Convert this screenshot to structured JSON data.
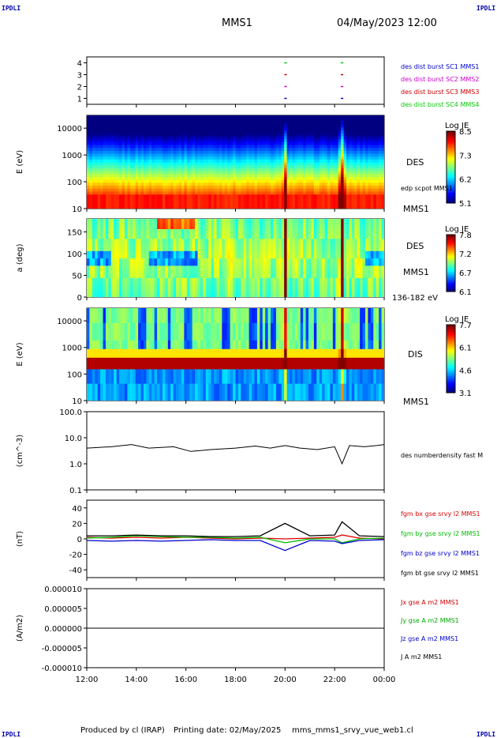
{
  "corner": {
    "tl": "IPDLI",
    "tr": "IPDLI",
    "bl": "IPDLI",
    "br": "IPDLI"
  },
  "header": {
    "spacecraft": "MMS1",
    "datetime": "04/May/2023 12:00"
  },
  "footer": {
    "produced": "Produced by cl (IRAP)",
    "printing": "Printing date: 02/May/2025",
    "file": "mms_mms1_srvy_vue_web1.cl"
  },
  "colors": {
    "mms1": "#0000cc",
    "mms2": "#cc00cc",
    "mms3": "#cc0000",
    "mms4": "#00cc00",
    "bx": "#dd0000",
    "by": "#00bb00",
    "bz": "#0000cc",
    "bt": "#000000"
  },
  "chart_data": [
    {
      "type": "scatter",
      "name": "burst availability",
      "yticks": [
        "1",
        "2",
        "3",
        "4"
      ],
      "ylim": [
        0.5,
        4.5
      ],
      "legend": [
        "des dist burst SC1 MMS1",
        "des dist burst SC2 MMS2",
        "des dist burst SC3 MMS3",
        "des dist burst SC4 MMS4"
      ],
      "segments": [
        {
          "sc": 1,
          "x": [
            19.97,
            20.07
          ]
        },
        {
          "sc": 2,
          "x": [
            19.97,
            20.07
          ]
        },
        {
          "sc": 3,
          "x": [
            19.97,
            20.07
          ]
        },
        {
          "sc": 4,
          "x": [
            19.97,
            20.07
          ]
        },
        {
          "sc": 1,
          "x": [
            22.25,
            22.35
          ]
        },
        {
          "sc": 2,
          "x": [
            22.25,
            22.35
          ]
        },
        {
          "sc": 3,
          "x": [
            22.25,
            22.35
          ]
        },
        {
          "sc": 4,
          "x": [
            22.25,
            22.35
          ]
        }
      ]
    },
    {
      "type": "heatmap",
      "name": "DES energy spectrogram",
      "ylabel": "E (eV)",
      "yscale": "log",
      "ylim": [
        10,
        30000
      ],
      "yticks": [
        "10",
        "100",
        "1000",
        "10000"
      ],
      "right_labels": [
        "DES",
        "edp scpot MMS1",
        "MMS1"
      ],
      "colorbar": {
        "title": "Log JE",
        "ticks": [
          "8.5",
          "7.3",
          "6.2",
          "5.1"
        ],
        "range": [
          5.1,
          8.5
        ]
      }
    },
    {
      "type": "heatmap",
      "name": "DES pitch angle",
      "ylabel": "a (deg)",
      "ylim": [
        0,
        180
      ],
      "yticks": [
        "0",
        "50",
        "100",
        "150"
      ],
      "right_labels": [
        "DES",
        "MMS1",
        "136-182 eV"
      ],
      "colorbar": {
        "title": "Log JE",
        "ticks": [
          "7.8",
          "7.2",
          "6.7",
          "6.1"
        ],
        "range": [
          6.1,
          7.8
        ]
      }
    },
    {
      "type": "heatmap",
      "name": "DIS energy spectrogram",
      "ylabel": "E (eV)",
      "yscale": "log",
      "ylim": [
        10,
        30000
      ],
      "yticks": [
        "10",
        "100",
        "1000",
        "10000"
      ],
      "right_labels": [
        "DIS",
        "MMS1"
      ],
      "colorbar": {
        "title": "Log JE",
        "ticks": [
          "7.7",
          "6.1",
          "4.6",
          "3.1"
        ],
        "range": [
          3.1,
          7.7
        ]
      }
    },
    {
      "type": "line",
      "name": "density",
      "ylabel": "(cm^-3)",
      "yscale": "log",
      "ylim": [
        0.1,
        100
      ],
      "yticks": [
        "0.1",
        "1.0",
        "10.0",
        "100.0"
      ],
      "legend": [
        "des numberdensity fast M"
      ],
      "x": [
        12.0,
        13.0,
        13.8,
        14.5,
        15.5,
        16.2,
        17.0,
        18.0,
        18.8,
        19.4,
        20.0,
        20.6,
        21.3,
        22.0,
        22.3,
        22.6,
        23.2,
        23.7,
        24.0
      ],
      "y": [
        4.0,
        4.5,
        5.5,
        4.0,
        4.5,
        3.0,
        3.5,
        4.0,
        4.8,
        4.0,
        5.0,
        4.0,
        3.5,
        4.5,
        1.0,
        5.0,
        4.5,
        5.0,
        5.5
      ]
    },
    {
      "type": "line",
      "name": "magnetic field",
      "ylabel": "(nT)",
      "ylim": [
        -50,
        50
      ],
      "yticks": [
        "-40",
        "-20",
        "0",
        "20",
        "40"
      ],
      "legend": [
        "fgm bx gse srvy l2 MMS1",
        "fgm by gse srvy l2 MMS1",
        "fgm bz gse srvy l2 MMS1",
        "fgm bt gse srvy l2 MMS1"
      ],
      "x": [
        12.0,
        13.0,
        14.0,
        15.0,
        16.0,
        17.0,
        18.0,
        19.0,
        20.0,
        21.0,
        22.0,
        22.3,
        23.0,
        24.0
      ],
      "series": [
        {
          "name": "bx",
          "values": [
            2,
            1,
            2,
            1,
            2,
            1,
            0,
            1,
            0,
            1,
            2,
            5,
            1,
            0
          ]
        },
        {
          "name": "by",
          "values": [
            1,
            2,
            4,
            3,
            2,
            2,
            1,
            2,
            -5,
            0,
            0,
            -5,
            0,
            1
          ]
        },
        {
          "name": "bz",
          "values": [
            -2,
            -3,
            -2,
            -3,
            -2,
            -1,
            -2,
            -2,
            -15,
            -2,
            -3,
            -6,
            -2,
            -1
          ]
        },
        {
          "name": "bt",
          "values": [
            4,
            4,
            5,
            4,
            4,
            3,
            3,
            4,
            20,
            4,
            5,
            22,
            4,
            3
          ]
        }
      ]
    },
    {
      "type": "line",
      "name": "current density",
      "ylabel": "(A/m2)",
      "ylim": [
        -1e-05,
        1e-05
      ],
      "yticks": [
        "-0.000010",
        "-0.000005",
        "0.000000",
        "0.000005",
        "0.000010"
      ],
      "legend": [
        "Jx gse A m2 MMS1",
        "Jy gse A m2 MMS1",
        "Jz gse A m2 MMS1",
        "J A m2 MMS1"
      ],
      "x": [
        12,
        24
      ],
      "y": [
        0,
        0
      ]
    }
  ],
  "xaxis": {
    "ticks": [
      "12:00",
      "14:00",
      "16:00",
      "18:00",
      "20:00",
      "22:00",
      "00:00"
    ],
    "range": [
      12,
      24
    ]
  }
}
